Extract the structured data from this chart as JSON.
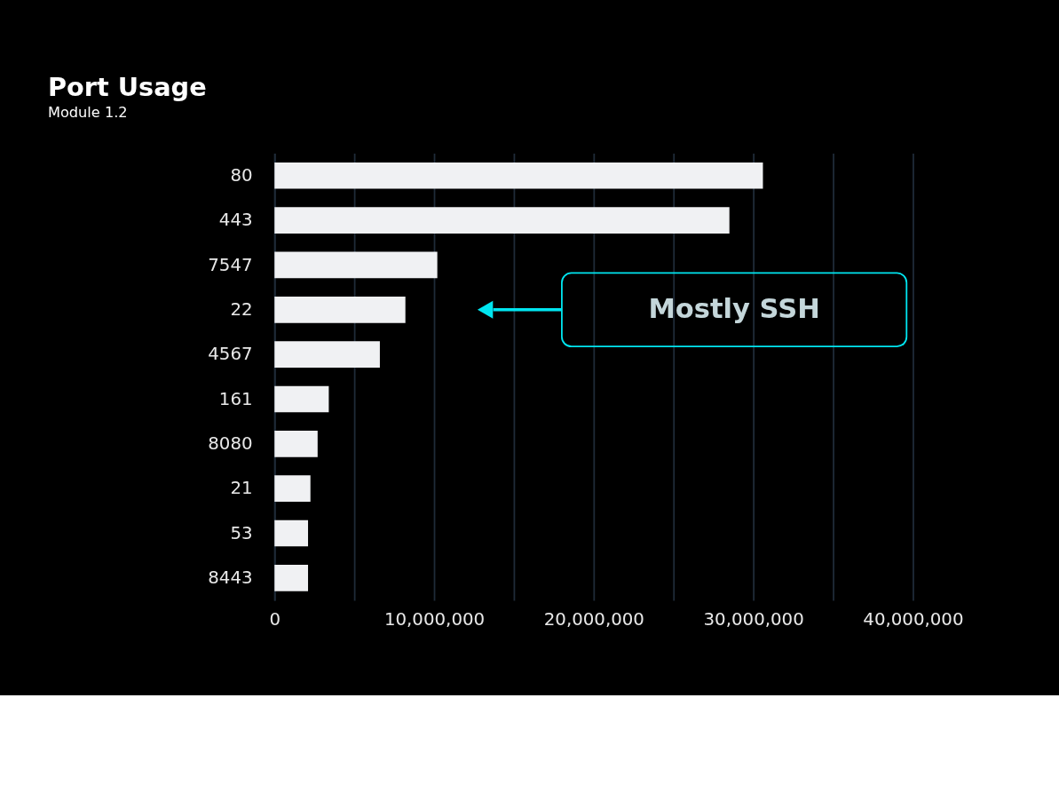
{
  "chart_data": {
    "type": "bar",
    "orientation": "horizontal",
    "subtitle": "Module 1.2",
    "title": "Port Usage",
    "categories": [
      "80",
      "443",
      "7547",
      "22",
      "4567",
      "161",
      "8080",
      "21",
      "53",
      "8443"
    ],
    "values": [
      30600000,
      28500000,
      10200000,
      8200000,
      6600000,
      3400000,
      2700000,
      2250000,
      2100000,
      2100000
    ],
    "color": "#f0f1f3",
    "xlim": [
      0,
      40000000
    ],
    "xticks": [
      0,
      {
        "value": 5000000,
        "label": null
      },
      {
        "value": 10000000,
        "label": "10,000,000"
      },
      {
        "value": 15000000,
        "label": null
      },
      {
        "value": 20000000,
        "label": "20,000,000"
      },
      {
        "value": 25000000,
        "label": null
      },
      {
        "value": 30000000,
        "label": "30,000,000"
      },
      {
        "value": 35000000,
        "label": null
      },
      {
        "value": 40000000,
        "label": "40,000,000"
      }
    ],
    "grid": "x",
    "annotations": [
      "Mostly SSH"
    ]
  }
}
